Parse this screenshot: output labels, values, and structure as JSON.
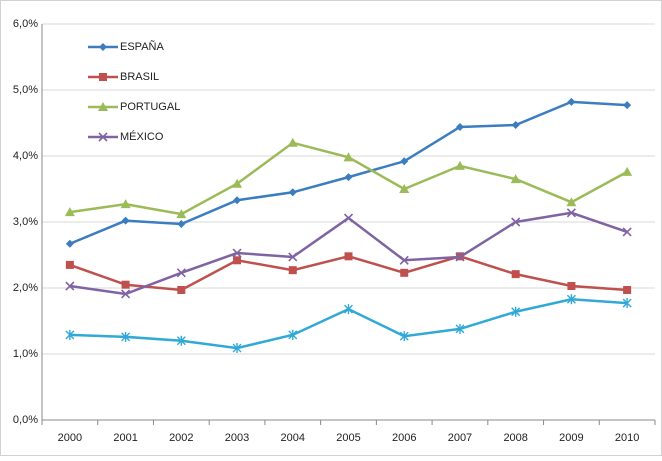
{
  "chart_data": {
    "type": "line",
    "categories": [
      "2000",
      "2001",
      "2002",
      "2003",
      "2004",
      "2005",
      "2006",
      "2007",
      "2008",
      "2009",
      "2010"
    ],
    "series": [
      {
        "name": "ESPAÑA",
        "color": "#3b7dbf",
        "marker": "diamond",
        "values": [
          2.67,
          3.02,
          2.97,
          3.33,
          3.45,
          3.68,
          3.92,
          4.44,
          4.47,
          4.82,
          4.77
        ]
      },
      {
        "name": "BRASIL",
        "color": "#c0504d",
        "marker": "square",
        "values": [
          2.35,
          2.05,
          1.97,
          2.42,
          2.27,
          2.48,
          2.23,
          2.48,
          2.21,
          2.03,
          1.97
        ]
      },
      {
        "name": "PORTUGAL",
        "color": "#9bbb59",
        "marker": "triangle",
        "values": [
          3.15,
          3.27,
          3.12,
          3.58,
          4.2,
          3.98,
          3.5,
          3.85,
          3.65,
          3.3,
          3.76
        ]
      },
      {
        "name": "MÉXICO",
        "color": "#7f63a2",
        "marker": "x",
        "values": [
          2.03,
          1.91,
          2.23,
          2.53,
          2.47,
          3.06,
          2.42,
          2.47,
          3.0,
          3.14,
          2.85
        ]
      },
      {
        "color": "#31a9d6",
        "marker": "star",
        "values": [
          1.29,
          1.26,
          1.2,
          1.09,
          1.29,
          1.68,
          1.27,
          1.38,
          1.64,
          1.83,
          1.77
        ]
      }
    ],
    "ylim": [
      0,
      6
    ],
    "yticks": [
      {
        "value": 0,
        "label": "0,0%"
      },
      {
        "value": 1,
        "label": "1,0%"
      },
      {
        "value": 2,
        "label": "2,0%"
      },
      {
        "value": 3,
        "label": "3,0%"
      },
      {
        "value": 4,
        "label": "4,0%"
      },
      {
        "value": 5,
        "label": "5,0%"
      },
      {
        "value": 6,
        "label": "6,0%"
      }
    ],
    "grid": true,
    "legend": "upper left"
  }
}
